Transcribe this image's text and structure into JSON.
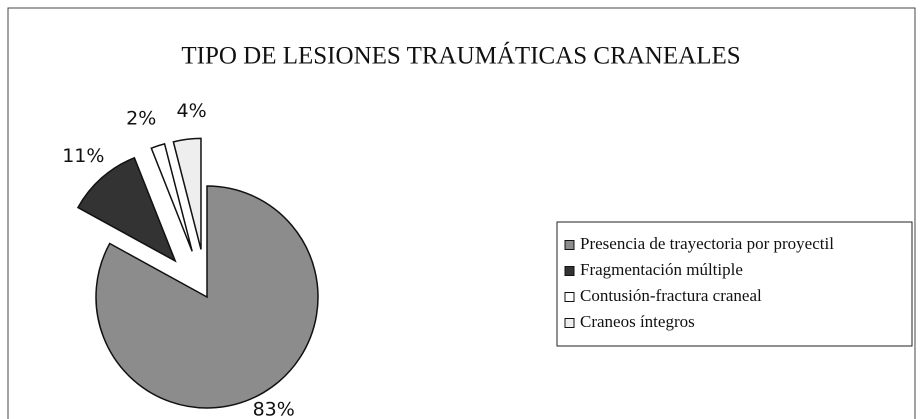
{
  "chart_data": {
    "type": "pie",
    "title": "TIPO DE LESIONES TRAUMÁTICAS CRANEALES",
    "categories": [
      "Presencia de trayectoria por proyectil",
      "Fragmentación múltiple",
      "Contusión-fractura craneal",
      "Craneos íntegros"
    ],
    "values": [
      83,
      11,
      2,
      4
    ],
    "value_labels": [
      "83%",
      "11%",
      "2%",
      "4%"
    ],
    "colors": [
      "#8c8c8c",
      "#333333",
      "#ffffff",
      "#eeeeee"
    ],
    "legend": "right"
  }
}
